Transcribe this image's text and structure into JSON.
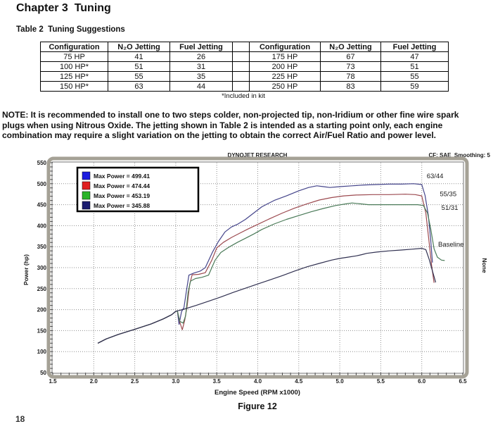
{
  "page": {
    "chapter_title": "Chapter 3  Tuning",
    "table_caption": "Table 2  Tuning Suggestions",
    "table_footnote": "*Included in kit",
    "note_lines": [
      "NOTE:  It is recommended to install one to two steps colder, non-projected tip, non-Iridium or other fine wire spark",
      "plugs when using Nitrous Oxide. The jetting shown in Table 2 is intended as a starting point only, each engine",
      "combination may require a slight variation on the jetting to obtain the correct Air/Fuel Ratio and power level."
    ],
    "figure_caption": "Figure 12",
    "page_number_partial": "18"
  },
  "table": {
    "left": {
      "headers": [
        "Configuration",
        "N₂O Jetting",
        "Fuel Jetting"
      ],
      "rows": [
        [
          "75 HP",
          "41",
          "26"
        ],
        [
          "100 HP*",
          "51",
          "31"
        ],
        [
          "125 HP*",
          "55",
          "35"
        ],
        [
          "150 HP*",
          "63",
          "44"
        ]
      ]
    },
    "right": {
      "headers": [
        "Configuration",
        "N₂O Jetting",
        "Fuel Jetting"
      ],
      "rows": [
        [
          "175 HP",
          "67",
          "47"
        ],
        [
          "200 HP",
          "73",
          "51"
        ],
        [
          "225 HP",
          "78",
          "55"
        ],
        [
          "250 HP",
          "83",
          "59"
        ]
      ]
    }
  },
  "chart_data": {
    "type": "line",
    "title": "DYNOJET RESEARCH",
    "corner_info": "CF: SAE  Smoothing: 5",
    "xlabel": "Engine Speed (RPM x1000)",
    "ylabel": "Power (hp)",
    "right_axis_label": "None",
    "xlim": [
      1.5,
      6.5
    ],
    "ylim": [
      50,
      550
    ],
    "x_ticks": [
      "1.5",
      "2.0",
      "2.5",
      "3.0",
      "3.5",
      "4.0",
      "4.5",
      "5.0",
      "5.5",
      "6.0",
      "6.5"
    ],
    "y_ticks": [
      50,
      100,
      150,
      200,
      250,
      300,
      350,
      400,
      450,
      500,
      550
    ],
    "grid": "dashed",
    "legend_position": "top-left",
    "frame_color": "#a5a196",
    "grid_color": "#8f8f8f",
    "series": [
      {
        "name": "63/44",
        "legend_label": "Max Power = 499.41",
        "max_power": 499.41,
        "legend_color": "#1c1ce0",
        "line_color": "#44448a",
        "label_x": 6.06,
        "label_y": 513,
        "points": [
          [
            2.05,
            120
          ],
          [
            2.15,
            130
          ],
          [
            2.3,
            141
          ],
          [
            2.5,
            153
          ],
          [
            2.7,
            166
          ],
          [
            2.85,
            178
          ],
          [
            2.95,
            188
          ],
          [
            3.0,
            196
          ],
          [
            3.02,
            197
          ],
          [
            3.04,
            165
          ],
          [
            3.07,
            195
          ],
          [
            3.1,
            205
          ],
          [
            3.13,
            245
          ],
          [
            3.16,
            282
          ],
          [
            3.22,
            287
          ],
          [
            3.3,
            292
          ],
          [
            3.36,
            300
          ],
          [
            3.45,
            338
          ],
          [
            3.52,
            362
          ],
          [
            3.6,
            385
          ],
          [
            3.68,
            397
          ],
          [
            3.75,
            403
          ],
          [
            3.85,
            415
          ],
          [
            3.95,
            430
          ],
          [
            4.05,
            445
          ],
          [
            4.2,
            460
          ],
          [
            4.35,
            471
          ],
          [
            4.5,
            483
          ],
          [
            4.62,
            491
          ],
          [
            4.72,
            495
          ],
          [
            4.8,
            493
          ],
          [
            4.88,
            491
          ],
          [
            5.0,
            493
          ],
          [
            5.15,
            495
          ],
          [
            5.3,
            497
          ],
          [
            5.45,
            498
          ],
          [
            5.6,
            499
          ],
          [
            5.75,
            499
          ],
          [
            5.9,
            500
          ],
          [
            6.0,
            498
          ],
          [
            6.04,
            472
          ],
          [
            6.08,
            425
          ],
          [
            6.11,
            365
          ],
          [
            6.13,
            312
          ]
        ]
      },
      {
        "name": "55/35",
        "legend_label": "Max Power = 474.44",
        "max_power": 474.44,
        "legend_color": "#e02020",
        "line_color": "#9c4a50",
        "label_x": 6.22,
        "label_y": 470,
        "points": [
          [
            2.05,
            120
          ],
          [
            2.15,
            130
          ],
          [
            2.3,
            141
          ],
          [
            2.5,
            153
          ],
          [
            2.7,
            166
          ],
          [
            2.85,
            178
          ],
          [
            2.95,
            188
          ],
          [
            3.0,
            196
          ],
          [
            3.02,
            197
          ],
          [
            3.05,
            170
          ],
          [
            3.08,
            152
          ],
          [
            3.11,
            175
          ],
          [
            3.14,
            210
          ],
          [
            3.17,
            260
          ],
          [
            3.2,
            283
          ],
          [
            3.28,
            284
          ],
          [
            3.36,
            288
          ],
          [
            3.44,
            318
          ],
          [
            3.5,
            347
          ],
          [
            3.58,
            360
          ],
          [
            3.68,
            372
          ],
          [
            3.78,
            382
          ],
          [
            3.88,
            392
          ],
          [
            4.0,
            403
          ],
          [
            4.15,
            417
          ],
          [
            4.3,
            430
          ],
          [
            4.45,
            442
          ],
          [
            4.6,
            452
          ],
          [
            4.75,
            461
          ],
          [
            4.9,
            467
          ],
          [
            5.05,
            471
          ],
          [
            5.2,
            473
          ],
          [
            5.4,
            474
          ],
          [
            5.6,
            474
          ],
          [
            5.8,
            475
          ],
          [
            5.92,
            474
          ],
          [
            6.0,
            471
          ],
          [
            6.05,
            430
          ],
          [
            6.09,
            360
          ],
          [
            6.12,
            305
          ],
          [
            6.15,
            264
          ]
        ]
      },
      {
        "name": "51/31",
        "legend_label": "Max Power = 453.19",
        "max_power": 453.19,
        "legend_color": "#28b428",
        "line_color": "#4a7a58",
        "label_x": 6.24,
        "label_y": 438,
        "points": [
          [
            2.05,
            120
          ],
          [
            2.15,
            130
          ],
          [
            2.3,
            141
          ],
          [
            2.5,
            153
          ],
          [
            2.7,
            166
          ],
          [
            2.85,
            178
          ],
          [
            2.95,
            188
          ],
          [
            3.0,
            196
          ],
          [
            3.02,
            197
          ],
          [
            3.05,
            172
          ],
          [
            3.09,
            168
          ],
          [
            3.12,
            185
          ],
          [
            3.15,
            240
          ],
          [
            3.18,
            268
          ],
          [
            3.24,
            274
          ],
          [
            3.32,
            277
          ],
          [
            3.4,
            282
          ],
          [
            3.48,
            318
          ],
          [
            3.55,
            336
          ],
          [
            3.65,
            349
          ],
          [
            3.75,
            360
          ],
          [
            3.85,
            370
          ],
          [
            3.95,
            380
          ],
          [
            4.05,
            391
          ],
          [
            4.2,
            404
          ],
          [
            4.35,
            415
          ],
          [
            4.5,
            424
          ],
          [
            4.65,
            433
          ],
          [
            4.8,
            441
          ],
          [
            4.95,
            448
          ],
          [
            5.08,
            452
          ],
          [
            5.15,
            454
          ],
          [
            5.25,
            452
          ],
          [
            5.35,
            450
          ],
          [
            5.55,
            450
          ],
          [
            5.75,
            450
          ],
          [
            5.95,
            450
          ],
          [
            6.02,
            448
          ],
          [
            6.07,
            430
          ],
          [
            6.11,
            392
          ],
          [
            6.15,
            345
          ],
          [
            6.19,
            325
          ],
          [
            6.24,
            318
          ],
          [
            6.28,
            317
          ]
        ]
      },
      {
        "name": "Baseline",
        "legend_label": "Max Power = 345.88",
        "max_power": 345.88,
        "legend_color": "#1c1c70",
        "line_color": "#303050",
        "label_x": 6.2,
        "label_y": 350,
        "points": [
          [
            2.05,
            120
          ],
          [
            2.15,
            130
          ],
          [
            2.3,
            141
          ],
          [
            2.5,
            153
          ],
          [
            2.7,
            166
          ],
          [
            2.85,
            178
          ],
          [
            2.95,
            188
          ],
          [
            3.0,
            196
          ],
          [
            3.1,
            201
          ],
          [
            3.25,
            210
          ],
          [
            3.4,
            220
          ],
          [
            3.55,
            230
          ],
          [
            3.7,
            241
          ],
          [
            3.85,
            251
          ],
          [
            4.0,
            261
          ],
          [
            4.15,
            271
          ],
          [
            4.3,
            281
          ],
          [
            4.45,
            292
          ],
          [
            4.6,
            302
          ],
          [
            4.75,
            310
          ],
          [
            4.9,
            318
          ],
          [
            5.0,
            322
          ],
          [
            5.1,
            325
          ],
          [
            5.2,
            328
          ],
          [
            5.27,
            331
          ],
          [
            5.33,
            334
          ],
          [
            5.45,
            337
          ],
          [
            5.6,
            340
          ],
          [
            5.75,
            342
          ],
          [
            5.88,
            344
          ],
          [
            6.0,
            346
          ],
          [
            6.05,
            343
          ],
          [
            6.09,
            320
          ],
          [
            6.13,
            292
          ],
          [
            6.17,
            265
          ]
        ]
      }
    ]
  }
}
